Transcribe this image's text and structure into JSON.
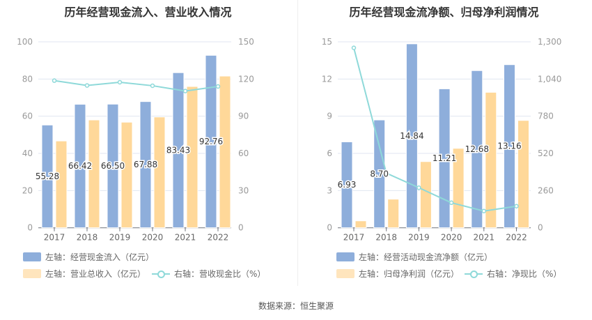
{
  "chart_data": [
    {
      "type": "bar",
      "title": "历年经营现金流入、营业收入情况",
      "categories": [
        "2017",
        "2018",
        "2019",
        "2020",
        "2021",
        "2022"
      ],
      "left_axis": {
        "ylim": [
          0,
          100
        ],
        "ticks": [
          "0",
          "20",
          "40",
          "60",
          "80",
          "100"
        ]
      },
      "right_axis": {
        "ylim": [
          0,
          150
        ],
        "ticks": [
          "0",
          "30",
          "60",
          "90",
          "120",
          "150"
        ]
      },
      "series": [
        {
          "name": "左轴：经营现金流入（亿元）",
          "axis": "left",
          "type": "bar",
          "color": "#8eaedb",
          "values": [
            55.28,
            66.42,
            66.5,
            67.88,
            83.43,
            92.76
          ],
          "labels": [
            "55.28",
            "66.42",
            "66.50",
            "67.88",
            "83.43",
            "92.76"
          ]
        },
        {
          "name": "左轴：营业总收入（亿元）",
          "axis": "left",
          "type": "bar",
          "color": "#ffd899",
          "values": [
            46.7,
            58.0,
            56.8,
            59.6,
            76.0,
            81.6
          ]
        },
        {
          "name": "右轴：营收现金比（%）",
          "axis": "right",
          "type": "line",
          "color": "#8ed9d9",
          "values": [
            118.7,
            114.8,
            117.4,
            114.6,
            110.3,
            114.0
          ]
        }
      ],
      "grid": true,
      "legend": "bottom"
    },
    {
      "type": "bar",
      "title": "历年经营现金流净额、归母净利润情况",
      "categories": [
        "2017",
        "2018",
        "2019",
        "2020",
        "2021",
        "2022"
      ],
      "left_axis": {
        "ylim": [
          0,
          15
        ],
        "ticks": [
          "0",
          "3",
          "6",
          "9",
          "12",
          "15"
        ]
      },
      "right_axis": {
        "ylim": [
          0,
          1300
        ],
        "ticks": [
          "0",
          "260",
          "520",
          "780",
          "1,040",
          "1,300"
        ]
      },
      "series": [
        {
          "name": "左轴：经营活动现金流净额（亿元）",
          "axis": "left",
          "type": "bar",
          "color": "#8eaedb",
          "values": [
            6.93,
            8.7,
            14.84,
            11.21,
            12.68,
            13.16
          ],
          "labels": [
            "6.93",
            "8.70",
            "14.84",
            "11.21",
            "12.68",
            "13.16"
          ]
        },
        {
          "name": "左轴：归母净利润（亿元）",
          "axis": "left",
          "type": "bar",
          "color": "#ffd899",
          "values": [
            0.56,
            2.31,
            5.34,
            6.41,
            10.93,
            8.66
          ]
        },
        {
          "name": "右轴：净现比（%）",
          "axis": "right",
          "type": "line",
          "color": "#8ed9d9",
          "values": [
            1258,
            382,
            280,
            175,
            117,
            151
          ]
        }
      ],
      "grid": true,
      "legend": "bottom"
    }
  ],
  "footer": "数据来源：恒生聚源"
}
